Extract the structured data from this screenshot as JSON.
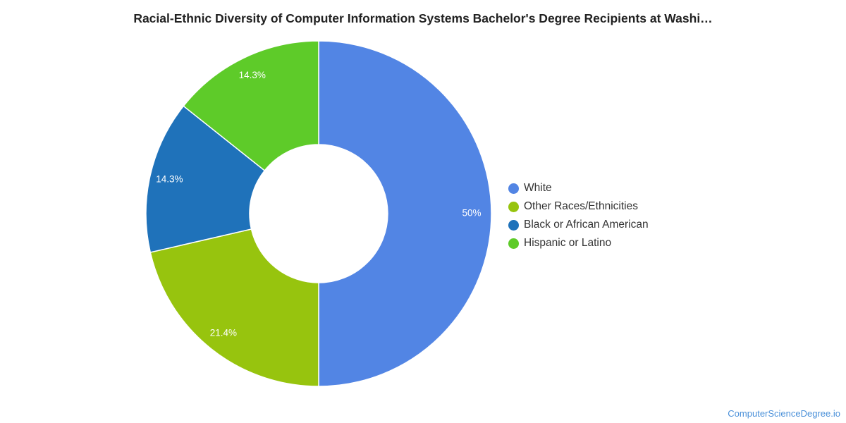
{
  "chart_data": {
    "type": "pie",
    "variant": "donut",
    "title": "Racial-Ethnic Diversity of Computer Information Systems Bachelor's Degree Recipients at Washi…",
    "categories": [
      "White",
      "Other Races/Ethnicities",
      "Black or African American",
      "Hispanic or Latino"
    ],
    "values": [
      50,
      21.4,
      14.3,
      14.3
    ],
    "value_labels": [
      "50%",
      "21.4%",
      "14.3%",
      "14.3%"
    ],
    "colors": [
      "#5285e4",
      "#97c40e",
      "#1f72ba",
      "#5ecb29"
    ],
    "legend_position": "right"
  },
  "source": "ComputerScienceDegree.io"
}
